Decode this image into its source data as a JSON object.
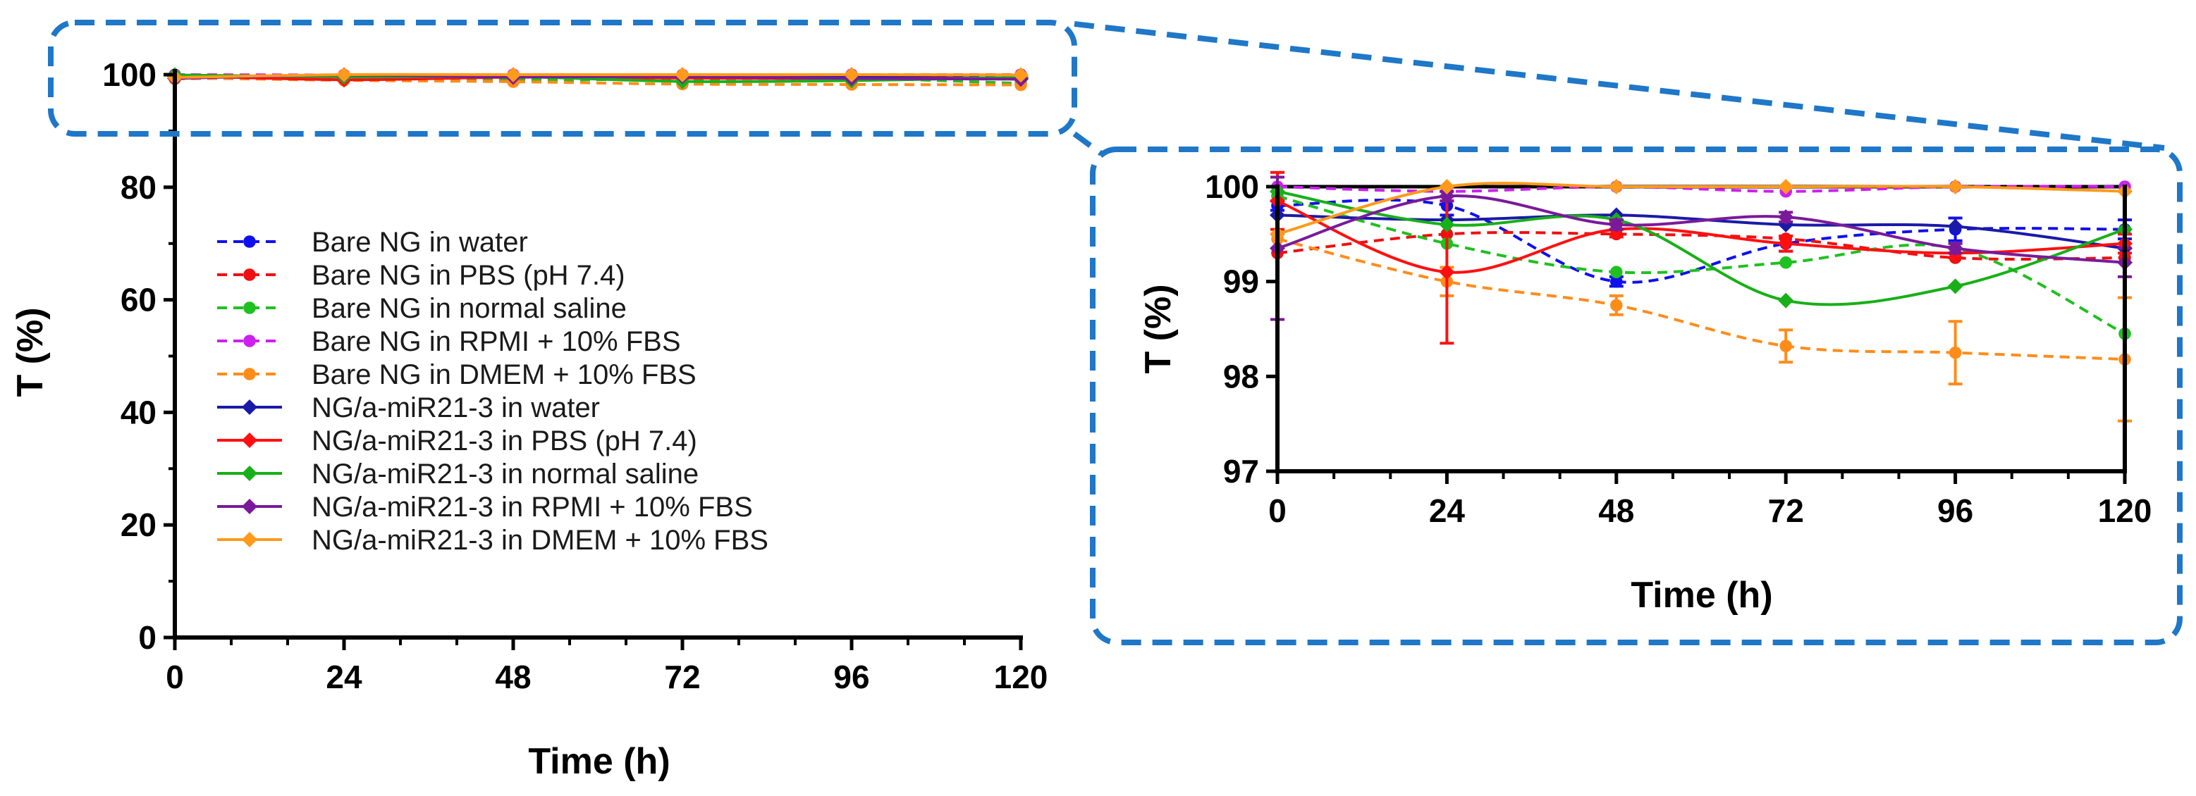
{
  "chart_data": [
    {
      "type": "line",
      "xlabel": "Time (h)",
      "ylabel": "T (%)",
      "xlim": [
        0,
        120
      ],
      "ylim": [
        0,
        100
      ],
      "xticks": [
        0,
        24,
        48,
        72,
        96,
        120
      ],
      "yticks": [
        0,
        20,
        40,
        60,
        80,
        100
      ],
      "x": [
        0,
        24,
        48,
        72,
        96,
        120
      ],
      "grid": false,
      "legend_position": "center-left",
      "series": [
        {
          "name": "Bare NG in water",
          "color": "#1010ee",
          "style": "dashed",
          "marker": "circle",
          "values": [
            99.8,
            99.8,
            99.0,
            99.4,
            99.55,
            99.55
          ]
        },
        {
          "name": "Bare NG in PBS (pH 7.4)",
          "color": "#ee1010",
          "style": "dashed",
          "marker": "circle",
          "values": [
            99.3,
            99.5,
            99.5,
            99.45,
            99.25,
            99.25
          ]
        },
        {
          "name": "Bare NG in normal saline",
          "color": "#20c020",
          "style": "dashed",
          "marker": "circle",
          "values": [
            99.9,
            99.4,
            99.1,
            99.2,
            99.35,
            98.45
          ]
        },
        {
          "name": "Bare NG in RPMI + 10% FBS",
          "color": "#cc20ee",
          "style": "dashed",
          "marker": "circle",
          "values": [
            100.0,
            99.95,
            100.0,
            99.95,
            100.0,
            100.0
          ]
        },
        {
          "name": "Bare NG in DMEM + 10% FBS",
          "color": "#ff8c1a",
          "style": "dashed",
          "marker": "circle",
          "values": [
            99.45,
            99.0,
            98.75,
            98.32,
            98.25,
            98.18
          ]
        },
        {
          "name": "NG/a-miR21-3 in water",
          "color": "#1a1aa8",
          "style": "solid",
          "marker": "diamond",
          "values": [
            99.7,
            99.65,
            99.7,
            99.6,
            99.58,
            99.35
          ]
        },
        {
          "name": "NG/a-miR21-3 in PBS (pH 7.4)",
          "color": "#ff1010",
          "style": "solid",
          "marker": "diamond",
          "values": [
            99.85,
            99.1,
            99.55,
            99.4,
            99.3,
            99.4
          ]
        },
        {
          "name": "NG/a-miR21-3 in normal saline",
          "color": "#18b018",
          "style": "solid",
          "marker": "diamond",
          "values": [
            99.95,
            99.6,
            99.65,
            98.8,
            98.95,
            99.55
          ]
        },
        {
          "name": "NG/a-miR21-3 in RPMI + 10% FBS",
          "color": "#7a1a9a",
          "style": "solid",
          "marker": "diamond",
          "values": [
            99.35,
            99.9,
            99.6,
            99.68,
            99.35,
            99.2
          ]
        },
        {
          "name": "NG/a-miR21-3 in DMEM + 10% FBS",
          "color": "#ff9a1a",
          "style": "solid",
          "marker": "diamond",
          "values": [
            99.5,
            100.0,
            100.0,
            100.0,
            100.0,
            99.95
          ]
        }
      ]
    },
    {
      "type": "line",
      "xlabel": "Time (h)",
      "ylabel": "T (%)",
      "xlim": [
        0,
        120
      ],
      "ylim": [
        97,
        100
      ],
      "xticks": [
        0,
        24,
        48,
        72,
        96,
        120
      ],
      "yticks": [
        97,
        98,
        99,
        100
      ],
      "x": [
        0,
        24,
        48,
        72,
        96,
        120
      ],
      "grid": false,
      "note_series": "same ten series as the main panel, zoomed into 97-100 %",
      "error_bars": {
        "Bare NG in DMEM + 10% FBS": [
          0,
          0.15,
          0.1,
          0.17,
          0.33,
          0.65
        ],
        "NG/a-miR21-3 in PBS (pH 7.4)": [
          0.3,
          0.75,
          0.08,
          0.08,
          0.05,
          0.1
        ],
        "NG/a-miR21-3 in RPMI + 10% FBS": [
          0.75,
          0.05,
          0.05,
          0.05,
          0.05,
          0.15
        ],
        "Bare NG in water": [
          0.05,
          0.1,
          0.05,
          0.08,
          0.12,
          0.1
        ]
      }
    }
  ]
}
